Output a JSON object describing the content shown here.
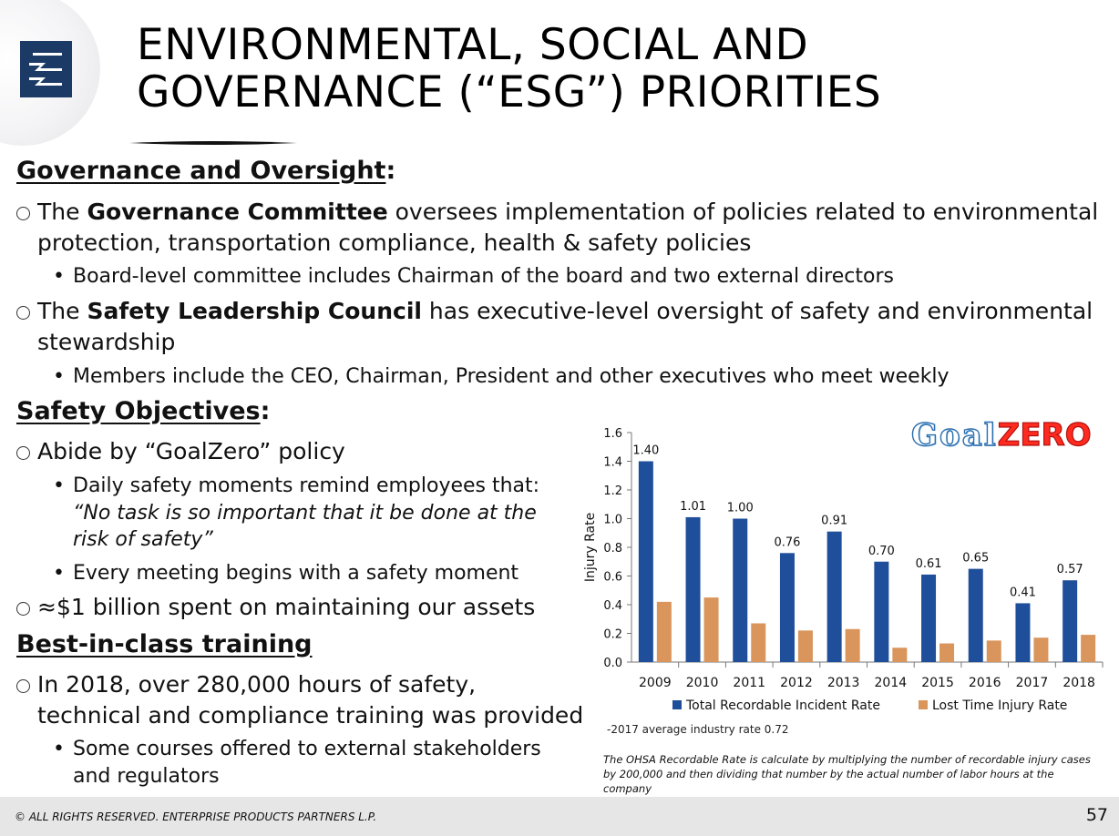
{
  "slide": {
    "title_line1": "ENVIRONMENTAL, SOCIAL AND",
    "title_line2": "GOVERNANCE (“ESG”) PRIORITIES",
    "page_number": "57",
    "footer": "© ALL RIGHTS RESERVED. ENTERPRISE PRODUCTS PARTNERS L.P."
  },
  "governance": {
    "heading": "Governance and Oversight",
    "colon": ":",
    "item1_pre": "The ",
    "item1_bold": "Governance Committee",
    "item1_post": " oversees implementation of policies related to environmental protection, transportation compliance, health & safety policies",
    "item1_sub": "Board-level committee includes Chairman of the board and two external directors",
    "item2_pre": "The ",
    "item2_bold": "Safety Leadership Council",
    "item2_post": " has executive-level oversight of safety and environmental stewardship",
    "item2_sub": "Members include the CEO, Chairman, President and other executives who meet weekly"
  },
  "safety": {
    "heading": "Safety Objectives",
    "colon": ":",
    "item1": " Abide by “GoalZero” policy",
    "sub1_line1": "Daily safety moments remind employees that:",
    "sub1_quote": "“No task is so important that it be done at the risk of safety”",
    "sub2": "Every meeting begins with a safety moment",
    "item2": "≈$1 billion spent on maintaining our assets"
  },
  "training": {
    "heading": "Best-in-class training",
    "item1": "In 2018, over 280,000 hours of safety, technical and compliance training was provided",
    "sub1": "Some courses offered to external stakeholders and regulators"
  },
  "goalzero": {
    "part1": "Goal",
    "part2": "ZERO"
  },
  "chart_data": {
    "type": "bar",
    "categories": [
      "2009",
      "2010",
      "2011",
      "2012",
      "2013",
      "2014",
      "2015",
      "2016",
      "2017",
      "2018"
    ],
    "series": [
      {
        "name": "Total Recordable Incident Rate",
        "color": "#1f4e9a",
        "values": [
          1.4,
          1.01,
          1.0,
          0.76,
          0.91,
          0.7,
          0.61,
          0.65,
          0.41,
          0.57
        ],
        "labels": [
          "1.40",
          "1.01",
          "1.00",
          "0.76",
          "0.91",
          "0.70",
          "0.61",
          "0.65",
          "0.41",
          "0.57"
        ]
      },
      {
        "name": "Lost Time Injury Rate",
        "color": "#d9955c",
        "values": [
          0.42,
          0.45,
          0.27,
          0.22,
          0.23,
          0.1,
          0.13,
          0.15,
          0.17,
          0.19
        ]
      }
    ],
    "ylabel": "Injury Rate",
    "ylim": [
      0,
      1.6
    ],
    "yticks": [
      "0.0",
      "0.2",
      "0.4",
      "0.6",
      "0.8",
      "1.0",
      "1.2",
      "1.4",
      "1.6"
    ],
    "legend_position": "bottom"
  },
  "notes": {
    "industry": "-2017 average industry rate 0.72",
    "ohsa": "The OHSA Recordable Rate is calculate by multiplying the number of recordable injury cases by 200,000 and then dividing that number by the actual number of labor hours at the company"
  }
}
